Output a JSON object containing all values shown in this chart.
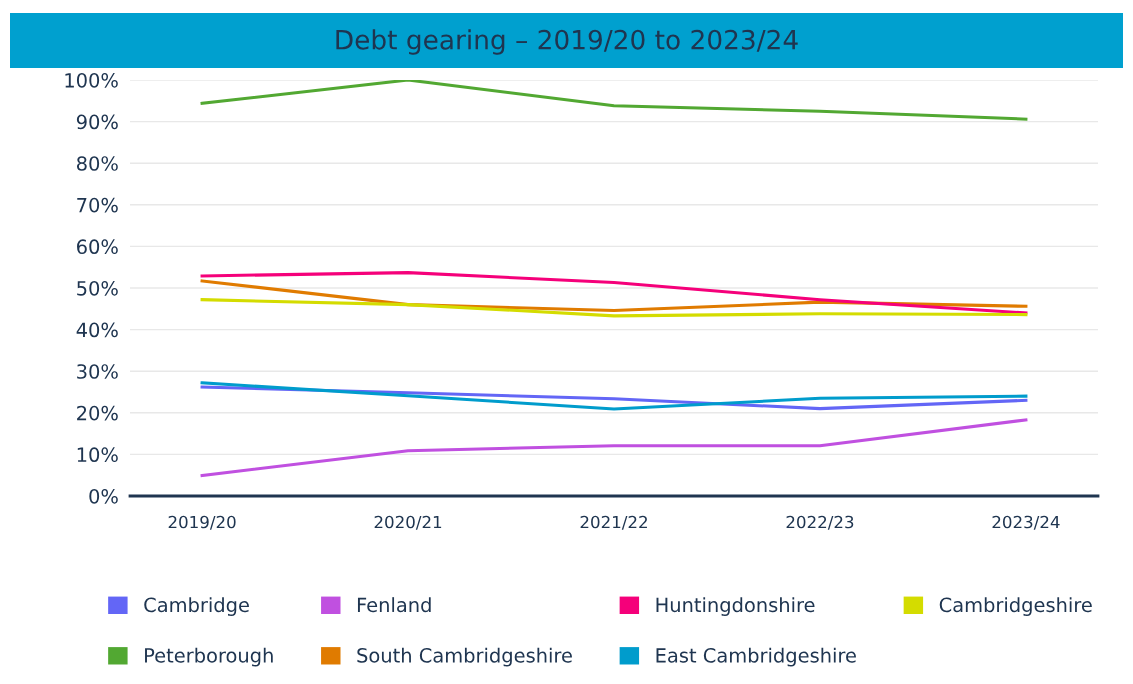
{
  "chart_data": {
    "type": "line",
    "title": "Debt gearing – 2019/20 to 2023/24",
    "categories": [
      "2019/20",
      "2020/21",
      "2021/22",
      "2022/23",
      "2023/24"
    ],
    "series": [
      {
        "name": "Cambridge",
        "color": "#6366f6",
        "values": [
          26.2,
          24.8,
          23.4,
          21.0,
          23.0
        ]
      },
      {
        "name": "Peterborough",
        "color": "#52a832",
        "values": [
          94.4,
          100,
          93.8,
          92.5,
          90.6
        ]
      },
      {
        "name": "Fenland",
        "color": "#c050e0",
        "values": [
          4.9,
          10.9,
          12.1,
          12.1,
          18.3
        ]
      },
      {
        "name": "South Cambridgeshire",
        "color": "#e07b00",
        "values": [
          51.7,
          46.0,
          44.6,
          46.6,
          45.6
        ]
      },
      {
        "name": "Huntingdonshire",
        "color": "#f5007a",
        "values": [
          52.9,
          53.7,
          51.3,
          47.2,
          44.0
        ]
      },
      {
        "name": "East Cambridgeshire",
        "color": "#009ccc",
        "values": [
          27.2,
          24.1,
          20.9,
          23.5,
          24.0
        ]
      },
      {
        "name": "Cambridgeshire",
        "color": "#d4dc00",
        "values": [
          47.2,
          46.0,
          43.3,
          43.8,
          43.6
        ]
      }
    ],
    "ylim": [
      0,
      100
    ],
    "yticks": [
      {
        "value": 0,
        "label": "0%"
      },
      {
        "value": 10,
        "label": "10%"
      },
      {
        "value": 20,
        "label": "20%"
      },
      {
        "value": 30,
        "label": "30%"
      },
      {
        "value": 40,
        "label": "40%"
      },
      {
        "value": 50,
        "label": "50%"
      },
      {
        "value": 60,
        "label": "60%"
      },
      {
        "value": 70,
        "label": "70%"
      },
      {
        "value": 80,
        "label": "80%"
      },
      {
        "value": 90,
        "label": "90%"
      },
      {
        "value": 100,
        "label": "100%"
      }
    ],
    "grid": "y",
    "legend": "bottom",
    "marker": "none",
    "line_style": "solid"
  }
}
